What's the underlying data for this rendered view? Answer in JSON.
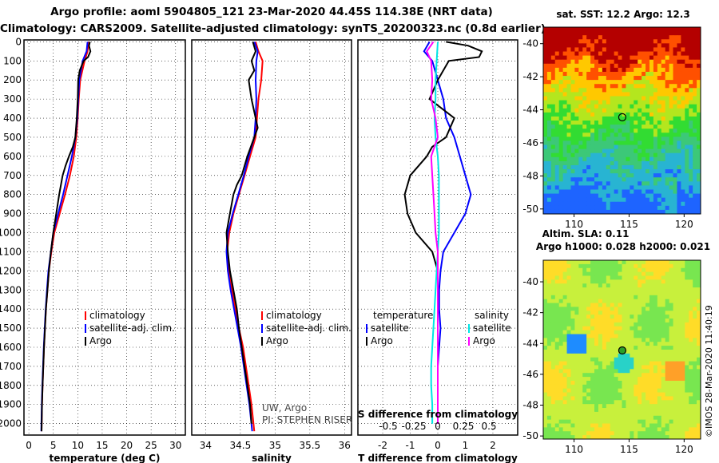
{
  "title_line1": "Argo profile: aoml 5904805_121 23-Mar-2020 44.45S 114.38E (NRT data)",
  "title_line2": "Climatology: CARS2009. Satellite-adjusted climatology: synTS_20200323.nc (0.8d earlier)",
  "colors": {
    "climatology": "#ff0000",
    "satellite": "#0000ff",
    "argo": "#000000",
    "sat_salinity": "#00e5e5",
    "argo_salinity": "#ff00ff"
  },
  "depth_ticks": [
    "0",
    "100",
    "200",
    "300",
    "400",
    "500",
    "600",
    "700",
    "800",
    "900",
    "1000",
    "1100",
    "1200",
    "1300",
    "1400",
    "1500",
    "1600",
    "1700",
    "1800",
    "1900",
    "2000"
  ],
  "legend": {
    "climatology": "climatology",
    "satellite_adj": "satellite-adj. clim.",
    "argo": "Argo",
    "temperature": "temperature",
    "salinity": "salinity",
    "satellite": "satellite"
  },
  "credit": {
    "line1": "UW, Argo",
    "line2": "PI: STEPHEN RISER"
  },
  "maps": {
    "sst_title": "sat. SST: 12.2 Argo: 12.3",
    "sla_title1": "Altim. SLA: 0.11",
    "sla_title2": "Argo h1000: 0.028 h2000: 0.021",
    "lat_ticks": [
      "-40",
      "-42",
      "-44",
      "-46",
      "-48",
      "-50"
    ],
    "lon_ticks": [
      "110",
      "115",
      "120"
    ],
    "stamp": "©IMOS 28-Mar-2020 11:40:19"
  },
  "chart_data": [
    {
      "type": "line",
      "xlabel": "temperature (deg C)",
      "ylabel": "depth",
      "xlim": [
        -1,
        32
      ],
      "ylim": [
        2060,
        -10
      ],
      "xticks": [
        "0",
        "5",
        "10",
        "15",
        "20",
        "25",
        "30"
      ],
      "series": [
        {
          "name": "climatology",
          "depth": [
            0,
            50,
            100,
            200,
            300,
            400,
            500,
            600,
            700,
            800,
            900,
            1000,
            1100,
            1200,
            1300,
            1400,
            1500,
            1600,
            1700,
            1800,
            1900,
            2040
          ],
          "values": [
            12.2,
            12.0,
            11.4,
            10.5,
            10.2,
            10.0,
            9.7,
            9.2,
            8.4,
            7.4,
            6.3,
            5.2,
            4.6,
            4.1,
            3.8,
            3.5,
            3.3,
            3.1,
            2.95,
            2.8,
            2.7,
            2.6
          ]
        },
        {
          "name": "satellite-adj. clim.",
          "depth": [
            0,
            50,
            100,
            200,
            300,
            400,
            500,
            600,
            700,
            800,
            900,
            1000,
            1100,
            1200,
            1300,
            1400,
            1500,
            1600,
            1700,
            1800,
            1900,
            2040
          ],
          "values": [
            12.0,
            11.8,
            11.0,
            10.3,
            10.1,
            9.9,
            9.5,
            8.8,
            7.9,
            7.0,
            6.0,
            5.0,
            4.5,
            4.0,
            3.7,
            3.45,
            3.25,
            3.05,
            2.9,
            2.75,
            2.65,
            2.55
          ]
        },
        {
          "name": "Argo",
          "depth": [
            0,
            20,
            50,
            80,
            100,
            150,
            200,
            300,
            400,
            500,
            550,
            600,
            650,
            700,
            800,
            900,
            1000,
            1100,
            1200,
            1300,
            1400,
            1500,
            1600,
            1700,
            1800,
            1900,
            2040
          ],
          "values": [
            12.5,
            12.3,
            12.6,
            12.1,
            11.2,
            10.4,
            10.1,
            10.0,
            9.8,
            9.5,
            9.0,
            8.2,
            7.5,
            6.9,
            6.2,
            5.6,
            5.0,
            4.5,
            4.1,
            3.8,
            3.5,
            3.3,
            3.1,
            2.95,
            2.8,
            2.7,
            2.6
          ]
        }
      ]
    },
    {
      "type": "line",
      "xlabel": "salinity",
      "ylabel": "depth",
      "xlim": [
        33.8,
        36.1
      ],
      "ylim": [
        2060,
        -10
      ],
      "xticks": [
        "34",
        "34.5",
        "35",
        "35.5",
        "36"
      ],
      "series": [
        {
          "name": "climatology",
          "depth": [
            0,
            50,
            100,
            200,
            300,
            400,
            500,
            600,
            700,
            800,
            900,
            1000,
            1100,
            1200,
            1300,
            1400,
            1500,
            1600,
            1700,
            1800,
            1900,
            2040
          ],
          "values": [
            34.72,
            34.76,
            34.82,
            34.8,
            34.76,
            34.74,
            34.72,
            34.64,
            34.56,
            34.48,
            34.4,
            34.34,
            34.31,
            34.33,
            34.38,
            34.43,
            34.48,
            34.54,
            34.58,
            34.62,
            34.66,
            34.7
          ]
        },
        {
          "name": "satellite-adj. clim.",
          "depth": [
            0,
            50,
            100,
            200,
            300,
            400,
            500,
            600,
            700,
            800,
            900,
            1000,
            1100,
            1200,
            1300,
            1400,
            1500,
            1600,
            1700,
            1800,
            1900,
            2040
          ],
          "values": [
            34.7,
            34.75,
            34.73,
            34.72,
            34.73,
            34.72,
            34.7,
            34.62,
            34.55,
            34.47,
            34.39,
            34.32,
            34.3,
            34.32,
            34.36,
            34.41,
            34.46,
            34.51,
            34.55,
            34.59,
            34.63,
            34.67
          ]
        },
        {
          "name": "Argo",
          "depth": [
            0,
            50,
            100,
            150,
            200,
            300,
            400,
            450,
            500,
            600,
            700,
            750,
            800,
            900,
            1000,
            1100,
            1200,
            1300,
            1400,
            1500,
            1600,
            1700,
            1800,
            1900,
            2000
          ],
          "values": [
            34.68,
            34.72,
            34.66,
            34.7,
            34.62,
            34.66,
            34.72,
            34.75,
            34.7,
            34.6,
            34.52,
            34.45,
            34.4,
            34.35,
            34.3,
            34.32,
            34.35,
            34.4,
            34.45,
            34.48,
            34.52,
            34.56,
            34.6,
            34.64,
            34.66
          ]
        }
      ]
    },
    {
      "type": "line",
      "xlabel": "T difference from climatology",
      "ylabel": "depth",
      "xlim": [
        -2.9,
        2.9
      ],
      "ylim": [
        2060,
        -10
      ],
      "xticks": [
        "-2",
        "-1",
        "0",
        "1",
        "2"
      ],
      "top_axis_label": "S difference from climatology",
      "top_xticks": [
        "-0.5",
        "-0.25",
        "0",
        "0.25",
        "0.5"
      ],
      "series": [
        {
          "name": "temperature satellite",
          "depth": [
            0,
            50,
            100,
            200,
            300,
            400,
            500,
            600,
            700,
            800,
            900,
            1000,
            1100,
            1200,
            1300,
            1400,
            1500,
            1600,
            1700,
            1800,
            1900,
            2000
          ],
          "values": [
            -0.3,
            -0.5,
            -0.2,
            0.0,
            0.2,
            0.3,
            0.6,
            0.8,
            1.0,
            1.2,
            1.0,
            0.6,
            0.2,
            0.1,
            0.05,
            0.05,
            0.1,
            0.05,
            0.0,
            0.0,
            0.0,
            0.0
          ]
        },
        {
          "name": "temperature Argo",
          "depth": [
            0,
            20,
            50,
            80,
            100,
            150,
            200,
            300,
            400,
            500,
            550,
            600,
            650,
            700,
            800,
            900,
            1000,
            1100,
            1200,
            1300,
            1400,
            1500,
            1600,
            1700,
            1800,
            1900,
            2000
          ],
          "values": [
            0.3,
            1.1,
            1.6,
            1.5,
            0.4,
            0.2,
            0.0,
            -0.3,
            0.6,
            0.3,
            -0.2,
            -0.4,
            -0.7,
            -1.0,
            -1.2,
            -1.1,
            -0.8,
            -0.2,
            0.0,
            0.0,
            0.0,
            0.0,
            0.0,
            0.0,
            0.0,
            0.0,
            0.0
          ]
        },
        {
          "name": "salinity satellite",
          "depth": [
            0,
            100,
            200,
            300,
            400,
            500,
            600,
            700,
            800,
            900,
            1000,
            1100,
            1200,
            1300,
            1400,
            1500,
            1600,
            1700,
            1800,
            1900,
            2000
          ],
          "values": [
            0.0,
            -0.01,
            -0.02,
            -0.02,
            -0.03,
            -0.02,
            0.0,
            0.01,
            0.01,
            0.01,
            0.01,
            0.0,
            -0.01,
            -0.02,
            -0.03,
            -0.04,
            -0.05,
            -0.06,
            -0.06,
            -0.05,
            -0.05
          ]
        },
        {
          "name": "salinity Argo",
          "depth": [
            0,
            50,
            100,
            200,
            300,
            400,
            500,
            600,
            700,
            800,
            900,
            1000,
            1100,
            1200,
            1300,
            1400,
            1500,
            1600,
            1700,
            1800,
            1900,
            2000
          ],
          "values": [
            -0.04,
            -0.1,
            -0.06,
            -0.05,
            -0.06,
            -0.02,
            0.0,
            -0.06,
            -0.05,
            -0.04,
            -0.03,
            -0.02,
            0.0,
            0.0,
            0.0,
            0.0,
            0.0,
            0.0,
            0.0,
            0.0,
            0.0,
            0.0
          ]
        }
      ]
    }
  ]
}
